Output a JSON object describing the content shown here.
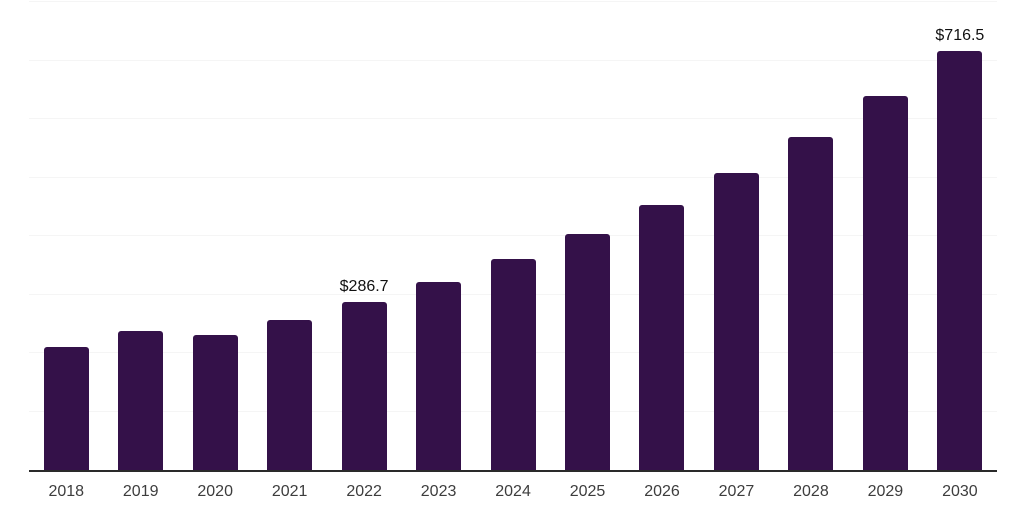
{
  "chart_data": {
    "type": "bar",
    "title": "",
    "xlabel": "",
    "ylabel": "",
    "categories": [
      "2018",
      "2019",
      "2020",
      "2021",
      "2022",
      "2023",
      "2024",
      "2025",
      "2026",
      "2027",
      "2028",
      "2029",
      "2030"
    ],
    "values": [
      210.3,
      237.6,
      230.8,
      256.4,
      286.7,
      321.5,
      360.5,
      404.2,
      453.2,
      508.2,
      569.8,
      638.9,
      716.5
    ],
    "point_labels": {
      "2022": "$286.7",
      "2030": "$716.5"
    },
    "ylim": [
      0,
      800
    ],
    "grid_interval": 100,
    "grid": "horizontal",
    "legend_position": "none",
    "y_tick_labels_visible": false,
    "colors": {
      "bar": "#341149",
      "gridline": "#f5f5f5",
      "axis": "#2a2a2a",
      "tick_label": "#3d3d3d",
      "point_label": "#111111",
      "background": "#ffffff"
    }
  }
}
